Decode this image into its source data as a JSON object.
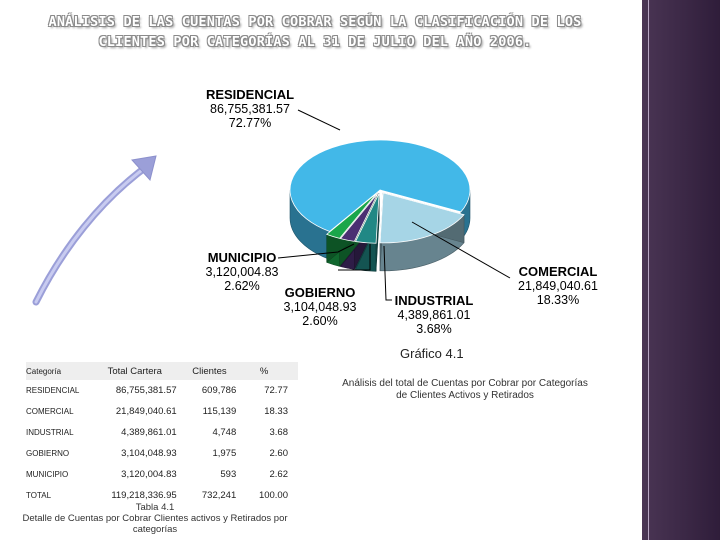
{
  "title": {
    "line1": "ANÁLISIS DE LAS CUENTAS POR COBRAR SEGÚN LA CLASIFICACIÓN DE LOS",
    "line2": "CLIENTES POR CATEGORÍAS AL 31 DE JULIO  DEL AÑO 2006."
  },
  "colors": {
    "residencial": "#42b8e8",
    "comercial": "#a6d5e6",
    "industrial": "#218885",
    "gobierno": "#4a2f72",
    "municipio": "#1aa64a",
    "sidebar": "#3c2a48"
  },
  "chart_data": {
    "type": "pie",
    "title": "",
    "slices": [
      {
        "label": "RESIDENCIAL",
        "value": 86755381.57,
        "value_text": "86,755,381.57",
        "percent_text": "72.77%",
        "color": "#42b8e8",
        "exploded": false
      },
      {
        "label": "COMERCIAL",
        "value": 21849040.61,
        "value_text": "21,849,040.61",
        "percent_text": "18.33%",
        "color": "#a6d5e6",
        "exploded": true
      },
      {
        "label": "INDUSTRIAL",
        "value": 4389861.01,
        "value_text": "4,389,861.01",
        "percent_text": "3.68%",
        "color": "#218885",
        "exploded": true
      },
      {
        "label": "GOBIERNO",
        "value": 3104048.93,
        "value_text": "3,104,048.93",
        "percent_text": "2.60%",
        "color": "#4a2f72",
        "exploded": true
      },
      {
        "label": "MUNICIPIO",
        "value": 3120004.83,
        "value_text": "3,120,004.83",
        "percent_text": "2.62%",
        "color": "#1aa64a",
        "exploded": true
      }
    ]
  },
  "figure_caption": "Gráfico 4.1",
  "side_caption": "Análisis del total de Cuentas por Cobrar  por Categorías de Clientes Activos y Retirados",
  "table": {
    "headers": [
      "Categoría",
      "Total Cartera",
      "Clientes",
      "%"
    ],
    "rows": [
      [
        "RESIDENCIAL",
        "86,755,381.57",
        "609,786",
        "72.77"
      ],
      [
        "COMERCIAL",
        "21,849,040.61",
        "115,139",
        "18.33"
      ],
      [
        "INDUSTRIAL",
        "4,389,861.01",
        "4,748",
        "3.68"
      ],
      [
        "GOBIERNO",
        "3,104,048.93",
        "1,975",
        "2.60"
      ],
      [
        "MUNICIPIO",
        "3,120,004.83",
        "593",
        "2.62"
      ],
      [
        "TOTAL",
        "119,218,336.95",
        "732,241",
        "100.00"
      ]
    ],
    "caption": "Tabla 4.1\nDetalle de Cuentas por Cobrar Clientes activos y Retirados por categorías"
  }
}
